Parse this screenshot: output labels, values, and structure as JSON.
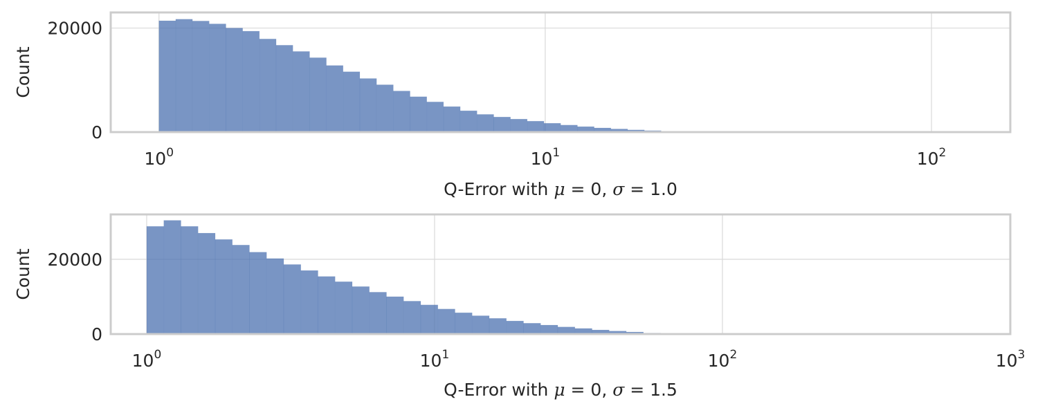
{
  "chart_data": [
    {
      "type": "bar",
      "subtype": "histogram",
      "xscale": "log",
      "xlabel": "Q-Error with μ = 0, σ = 1.0",
      "ylabel": "Count",
      "xlim": [
        0.75,
        160
      ],
      "ylim": [
        0,
        23000
      ],
      "xticks": [
        1,
        10,
        100
      ],
      "xtick_labels": [
        "10^0",
        "10^1",
        "10^2"
      ],
      "yticks": [
        0,
        20000
      ],
      "ytick_labels": [
        "0",
        "20000"
      ],
      "grid": true,
      "color": "#4c72b0",
      "bins_log10_range": [
        0,
        1.3
      ],
      "values": [
        21400,
        21700,
        21350,
        20800,
        20000,
        19400,
        17900,
        16700,
        15500,
        14300,
        12800,
        11600,
        10300,
        9100,
        7900,
        6800,
        5800,
        4900,
        4100,
        3400,
        2900,
        2500,
        2100,
        1700,
        1350,
        1050,
        800,
        600,
        420,
        280
      ]
    },
    {
      "type": "bar",
      "subtype": "histogram",
      "xscale": "log",
      "xlabel": "Q-Error with μ = 0, σ = 1.5",
      "ylabel": "Count",
      "xlim": [
        0.75,
        1000
      ],
      "ylim": [
        0,
        32000
      ],
      "xticks": [
        1,
        10,
        100,
        1000
      ],
      "xtick_labels": [
        "10^0",
        "10^1",
        "10^2",
        "10^3"
      ],
      "yticks": [
        0,
        20000
      ],
      "ytick_labels": [
        "0",
        "20000"
      ],
      "grid": true,
      "color": "#4c72b0",
      "bins_log10_range": [
        0,
        1.785
      ],
      "values": [
        28800,
        30400,
        28800,
        27000,
        25300,
        23800,
        21900,
        20200,
        18600,
        17000,
        15400,
        14000,
        12700,
        11200,
        10000,
        8800,
        7800,
        6700,
        5700,
        4900,
        4200,
        3500,
        2900,
        2400,
        1900,
        1500,
        1100,
        800,
        550,
        280
      ]
    }
  ]
}
